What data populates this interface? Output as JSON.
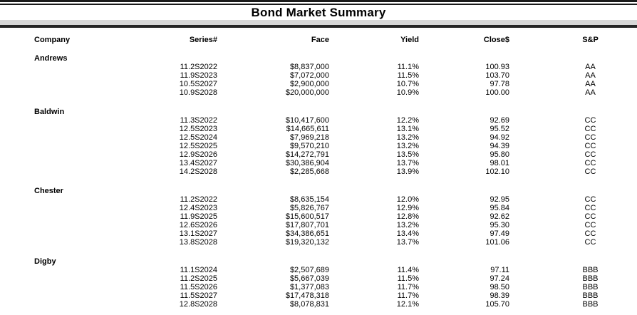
{
  "title": "Bond Market Summary",
  "columns": {
    "company": "Company",
    "series": "Series#",
    "face": "Face",
    "yield": "Yield",
    "close": "Close$",
    "sp": "S&P"
  },
  "companies": [
    {
      "name": "Andrews",
      "bonds": [
        {
          "series": "11.2S2022",
          "face": "$8,837,000",
          "yield": "11.1%",
          "close": "100.93",
          "sp": "AA"
        },
        {
          "series": "11.9S2023",
          "face": "$7,072,000",
          "yield": "11.5%",
          "close": "103.70",
          "sp": "AA"
        },
        {
          "series": "10.5S2027",
          "face": "$2,900,000",
          "yield": "10.7%",
          "close": "97.78",
          "sp": "AA"
        },
        {
          "series": "10.9S2028",
          "face": "$20,000,000",
          "yield": "10.9%",
          "close": "100.00",
          "sp": "AA"
        }
      ]
    },
    {
      "name": "Baldwin",
      "bonds": [
        {
          "series": "11.3S2022",
          "face": "$10,417,600",
          "yield": "12.2%",
          "close": "92.69",
          "sp": "CC"
        },
        {
          "series": "12.5S2023",
          "face": "$14,665,611",
          "yield": "13.1%",
          "close": "95.52",
          "sp": "CC"
        },
        {
          "series": "12.5S2024",
          "face": "$7,969,218",
          "yield": "13.2%",
          "close": "94.92",
          "sp": "CC"
        },
        {
          "series": "12.5S2025",
          "face": "$9,570,210",
          "yield": "13.2%",
          "close": "94.39",
          "sp": "CC"
        },
        {
          "series": "12.9S2026",
          "face": "$14,272,791",
          "yield": "13.5%",
          "close": "95.80",
          "sp": "CC"
        },
        {
          "series": "13.4S2027",
          "face": "$30,386,904",
          "yield": "13.7%",
          "close": "98.01",
          "sp": "CC"
        },
        {
          "series": "14.2S2028",
          "face": "$2,285,668",
          "yield": "13.9%",
          "close": "102.10",
          "sp": "CC"
        }
      ]
    },
    {
      "name": "Chester",
      "bonds": [
        {
          "series": "11.2S2022",
          "face": "$8,635,154",
          "yield": "12.0%",
          "close": "92.95",
          "sp": "CC"
        },
        {
          "series": "12.4S2023",
          "face": "$5,826,767",
          "yield": "12.9%",
          "close": "95.84",
          "sp": "CC"
        },
        {
          "series": "11.9S2025",
          "face": "$15,600,517",
          "yield": "12.8%",
          "close": "92.62",
          "sp": "CC"
        },
        {
          "series": "12.6S2026",
          "face": "$17,807,701",
          "yield": "13.2%",
          "close": "95.30",
          "sp": "CC"
        },
        {
          "series": "13.1S2027",
          "face": "$34,386,651",
          "yield": "13.4%",
          "close": "97.49",
          "sp": "CC"
        },
        {
          "series": "13.8S2028",
          "face": "$19,320,132",
          "yield": "13.7%",
          "close": "101.06",
          "sp": "CC"
        }
      ]
    },
    {
      "name": "Digby",
      "bonds": [
        {
          "series": "11.1S2024",
          "face": "$2,507,689",
          "yield": "11.4%",
          "close": "97.11",
          "sp": "BBB"
        },
        {
          "series": "11.2S2025",
          "face": "$5,667,039",
          "yield": "11.5%",
          "close": "97.24",
          "sp": "BBB"
        },
        {
          "series": "11.5S2026",
          "face": "$1,377,083",
          "yield": "11.7%",
          "close": "98.50",
          "sp": "BBB"
        },
        {
          "series": "11.5S2027",
          "face": "$17,478,318",
          "yield": "11.7%",
          "close": "98.39",
          "sp": "BBB"
        },
        {
          "series": "12.8S2028",
          "face": "$8,078,831",
          "yield": "12.1%",
          "close": "105.70",
          "sp": "BBB"
        }
      ]
    }
  ],
  "colors": {
    "rule": "#1a1a1a",
    "header_rule": "#262626",
    "divider_band": "#d8d8d8",
    "text": "#000000",
    "background": "#ffffff"
  }
}
